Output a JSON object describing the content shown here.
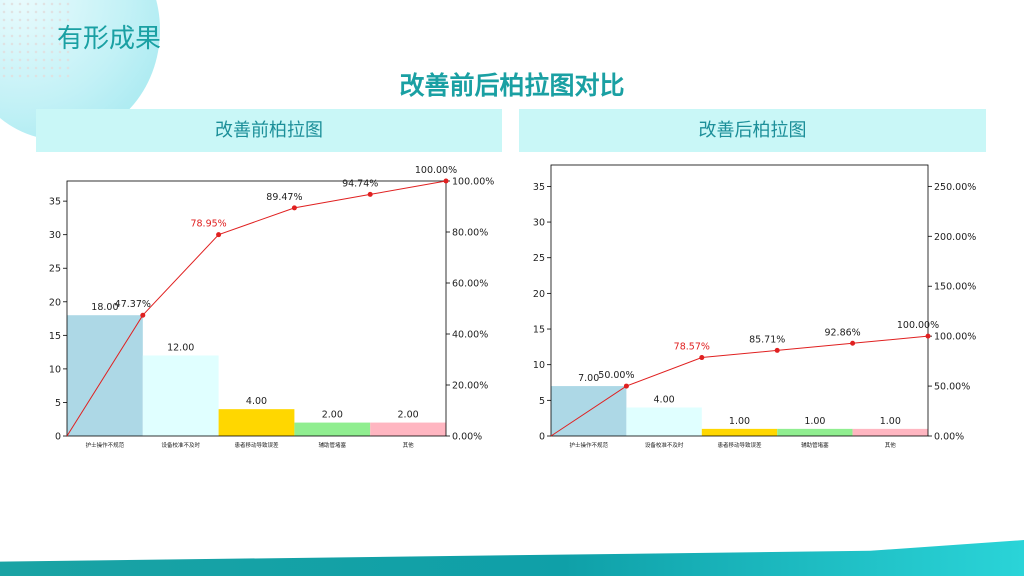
{
  "page": {
    "heading": "有形成果",
    "title": "改善前后柏拉图对比"
  },
  "panels": {
    "before_title": "改善前柏拉图",
    "after_title": "改善后柏拉图"
  },
  "colors": {
    "accent": "#1aa0a3",
    "line": "#e02020",
    "highlight_label": "#e02020",
    "bars": [
      "#add8e6",
      "#e0ffff",
      "#ffd700",
      "#90ee90",
      "#ffb6c1"
    ]
  },
  "chart_data": [
    {
      "type": "bar",
      "categories": [
        "护士操作不规范",
        "设备校准不及时",
        "患者移动导致误差",
        "辅助管堵塞",
        "其他"
      ],
      "values": [
        18,
        12,
        4,
        2,
        2
      ],
      "value_labels": [
        "18.00",
        "12.00",
        "4.00",
        "2.00",
        "2.00"
      ],
      "cumulative_percent": [
        47.37,
        78.95,
        89.47,
        94.74,
        100.0
      ],
      "cumulative_labels": [
        "47.37%",
        "78.95%",
        "89.47%",
        "94.74%",
        "100.00%"
      ],
      "highlight_index": 1,
      "ylim": [
        0,
        38
      ],
      "y_ticks": [
        0,
        5,
        10,
        15,
        20,
        25,
        30,
        35
      ],
      "y2lim": [
        0,
        100
      ],
      "y2_ticks": [
        0,
        20,
        40,
        60,
        80,
        100
      ],
      "y2_tick_labels": [
        "0.00%",
        "20.00%",
        "40.00%",
        "60.00%",
        "80.00%",
        "100.00%"
      ]
    },
    {
      "type": "bar",
      "categories": [
        "护士操作不规范",
        "设备校准不及时",
        "患者移动导致误差",
        "辅助管堵塞",
        "其他"
      ],
      "values": [
        7,
        4,
        1,
        1,
        1
      ],
      "value_labels": [
        "7.00",
        "4.00",
        "1.00",
        "1.00",
        "1.00"
      ],
      "cumulative_percent": [
        50.0,
        78.57,
        85.71,
        92.86,
        100.0
      ],
      "cumulative_labels": [
        "50.00%",
        "78.57%",
        "85.71%",
        "92.86%",
        "100.00%"
      ],
      "highlight_index": 1,
      "ylim": [
        0,
        38
      ],
      "y_ticks": [
        0,
        5,
        10,
        15,
        20,
        25,
        30,
        35
      ],
      "y2lim": [
        0,
        271.4
      ],
      "y2_ticks": [
        0,
        50,
        100,
        150,
        200,
        250
      ],
      "y2_tick_labels": [
        "0.00%",
        "50.00%",
        "100.00%",
        "150.00%",
        "200.00%",
        "250.00%"
      ]
    }
  ]
}
